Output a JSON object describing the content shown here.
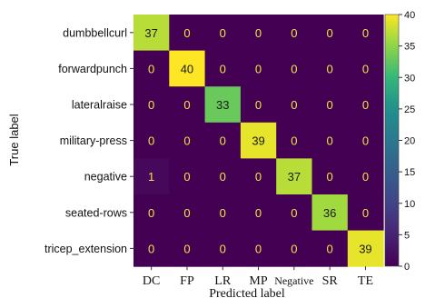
{
  "chart_data": {
    "type": "heatmap",
    "title": "",
    "xlabel": "Predicted label",
    "ylabel": "True label",
    "x_categories": [
      "DC",
      "FP",
      "LR",
      "MP",
      "Negative",
      "SR",
      "TE"
    ],
    "y_categories": [
      "dumbbellcurl",
      "forwardpunch",
      "lateralraise",
      "military-press",
      "negative",
      "seated-rows",
      "tricep_extension"
    ],
    "values": [
      [
        37,
        0,
        0,
        0,
        0,
        0,
        0
      ],
      [
        0,
        40,
        0,
        0,
        0,
        0,
        0
      ],
      [
        0,
        0,
        33,
        0,
        0,
        0,
        0
      ],
      [
        0,
        0,
        0,
        39,
        0,
        0,
        0
      ],
      [
        1,
        0,
        0,
        0,
        37,
        0,
        0
      ],
      [
        0,
        0,
        0,
        0,
        0,
        36,
        0
      ],
      [
        0,
        0,
        0,
        0,
        0,
        0,
        39
      ]
    ],
    "colorbar": {
      "range": [
        0,
        40
      ],
      "ticks": [
        0,
        5,
        10,
        15,
        20,
        25,
        30,
        35,
        40
      ],
      "colormap": "viridis"
    },
    "colors": {
      "low_value_text": "#f0e442",
      "high_value_text": "#1a1a1a"
    }
  }
}
